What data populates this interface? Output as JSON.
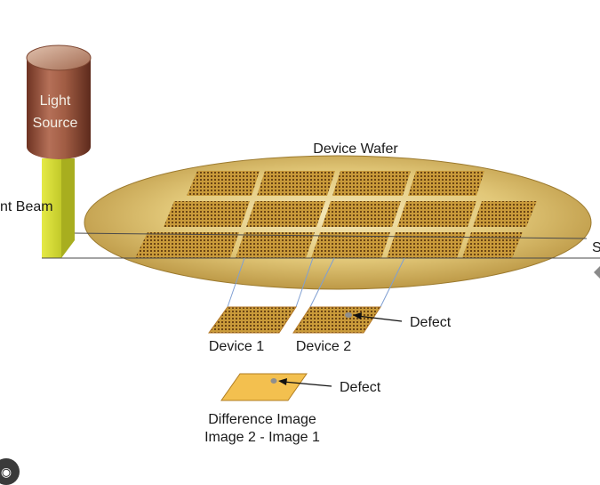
{
  "diagram": {
    "light_source_line1": "Light",
    "light_source_line2": "Source",
    "light_beam_label": "nt Beam",
    "wafer_label": "Device Wafer",
    "right_edge_label": "S",
    "device1_label": "Device 1",
    "device2_label": "Device 2",
    "defect_label_1": "Defect",
    "defect_label_2": "Defect",
    "difference_line1": "Difference Image",
    "difference_line2": "Image 2 - Image 1"
  },
  "icons": {
    "corner_badge": "lens-icon"
  },
  "colors": {
    "wafer_gold": "#d8bb62",
    "device_gold": "#c99a3a",
    "difference_fill": "#f3c04f",
    "beam_yellow": "#d9de35",
    "cylinder_top": "#c8a085",
    "cylinder_body": "#9b5a42"
  }
}
